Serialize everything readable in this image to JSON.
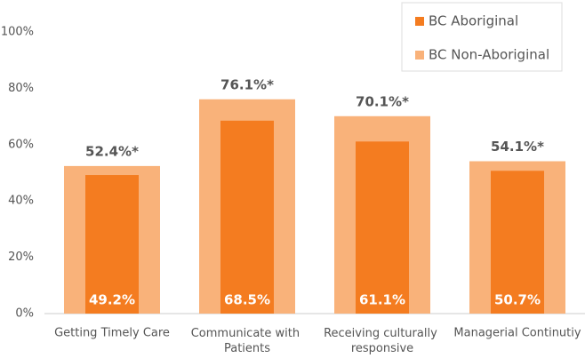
{
  "chart_data": {
    "type": "bar",
    "categories": [
      "Getting Timely Care",
      "Communicate with Patients",
      "Receiving culturally responsive",
      "Managerial Continutiy"
    ],
    "series": [
      {
        "name": "BC Aboriginal",
        "color": "#f47c20",
        "values": [
          49.2,
          68.5,
          61.1,
          50.7
        ],
        "value_labels": [
          "49.2%",
          "68.5%",
          "61.1%",
          "50.7%"
        ]
      },
      {
        "name": "BC Non-Aboriginal",
        "color": "#f9b27a",
        "values": [
          52.4,
          76.1,
          70.1,
          54.1
        ],
        "value_labels": [
          "52.4%*",
          "76.1%*",
          "70.1%*",
          "54.1%*"
        ]
      }
    ],
    "ylim": [
      0,
      100
    ],
    "yticks": [
      {
        "value": 0,
        "label": "0%"
      },
      {
        "value": 20,
        "label": "20%"
      },
      {
        "value": 40,
        "label": "40%"
      },
      {
        "value": 60,
        "label": "60%"
      },
      {
        "value": 80,
        "label": "80%"
      },
      {
        "value": 100,
        "label": "100%"
      }
    ],
    "grid": false,
    "legend": "top-right"
  }
}
